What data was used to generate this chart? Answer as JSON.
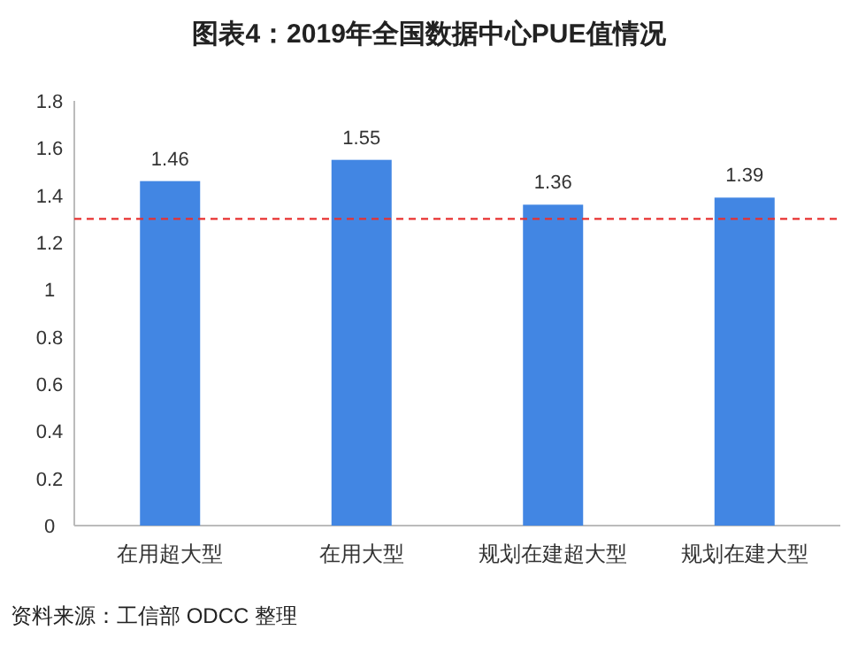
{
  "chart_data": {
    "type": "bar",
    "title": "图表4：2019年全国数据中心PUE值情况",
    "categories": [
      "在用超大型",
      "在用大型",
      "规划在建超大型",
      "规划在建大型"
    ],
    "values": [
      1.46,
      1.55,
      1.36,
      1.39
    ],
    "color": "#4286e3",
    "ylim": [
      0,
      1.8
    ],
    "yticks": [
      0,
      0.2,
      0.4,
      0.6,
      0.8,
      1,
      1.2,
      1.4,
      1.6,
      1.8
    ],
    "data_labels": true,
    "ref_lines": [
      {
        "axis": "y",
        "value": 1.3,
        "color": "#e8302f",
        "line_style": "dashed"
      }
    ],
    "annotations": [
      "资料来源：工信部 ODCC 整理"
    ]
  }
}
